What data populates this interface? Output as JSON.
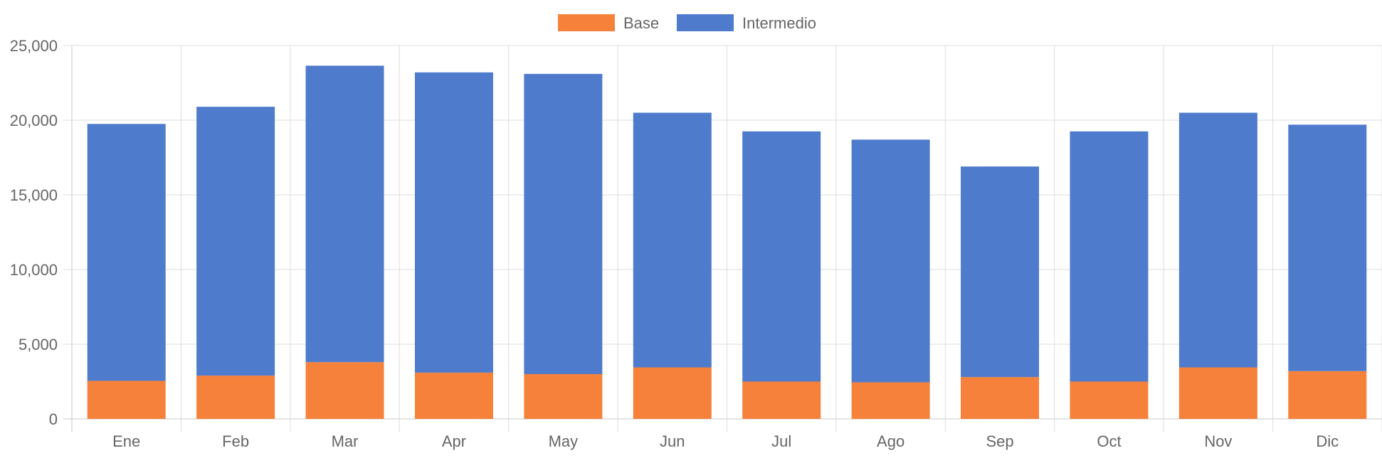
{
  "chart_data": {
    "type": "bar",
    "stacked": true,
    "categories": [
      "Ene",
      "Feb",
      "Mar",
      "Apr",
      "May",
      "Jun",
      "Jul",
      "Ago",
      "Sep",
      "Oct",
      "Nov",
      "Dic"
    ],
    "series": [
      {
        "name": "Base",
        "color": "#f5813a",
        "values": [
          2550,
          2900,
          3800,
          3100,
          3000,
          3450,
          2500,
          2450,
          2800,
          2500,
          3450,
          3200
        ]
      },
      {
        "name": "Intermedio",
        "color": "#4f7bcc",
        "values": [
          17200,
          18000,
          19850,
          20100,
          20100,
          17050,
          16750,
          16250,
          14100,
          16750,
          17050,
          16500
        ]
      }
    ],
    "ylim": [
      0,
      25000
    ],
    "yticks": [
      0,
      5000,
      10000,
      15000,
      20000,
      25000
    ],
    "ytick_labels": [
      "0",
      "5,000",
      "10,000",
      "15,000",
      "20,000",
      "25,000"
    ],
    "grid": true,
    "legend_position": "top-center",
    "title": "",
    "xlabel": "",
    "ylabel": ""
  }
}
